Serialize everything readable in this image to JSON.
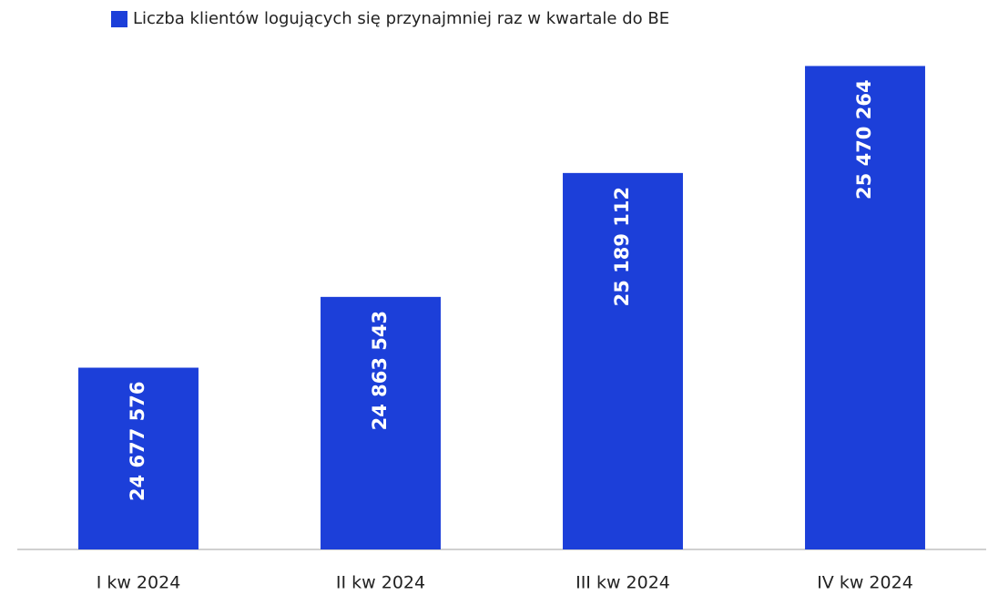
{
  "chart_data": {
    "type": "bar",
    "legend": "Liczba klientów logujących się przynajmniej raz w kwartale do BE",
    "categories": [
      "I kw 2024",
      "II kw 2024",
      "III kw 2024",
      "IV kw 2024"
    ],
    "values": [
      24677576,
      24863543,
      25189112,
      25470264
    ],
    "value_labels": [
      "24 677 576",
      "24 863 543",
      "25 189 112",
      "25 470 264"
    ],
    "color": "#1c3fd9",
    "ylim": [
      24200000,
      25500000
    ],
    "legend_position": "top"
  }
}
